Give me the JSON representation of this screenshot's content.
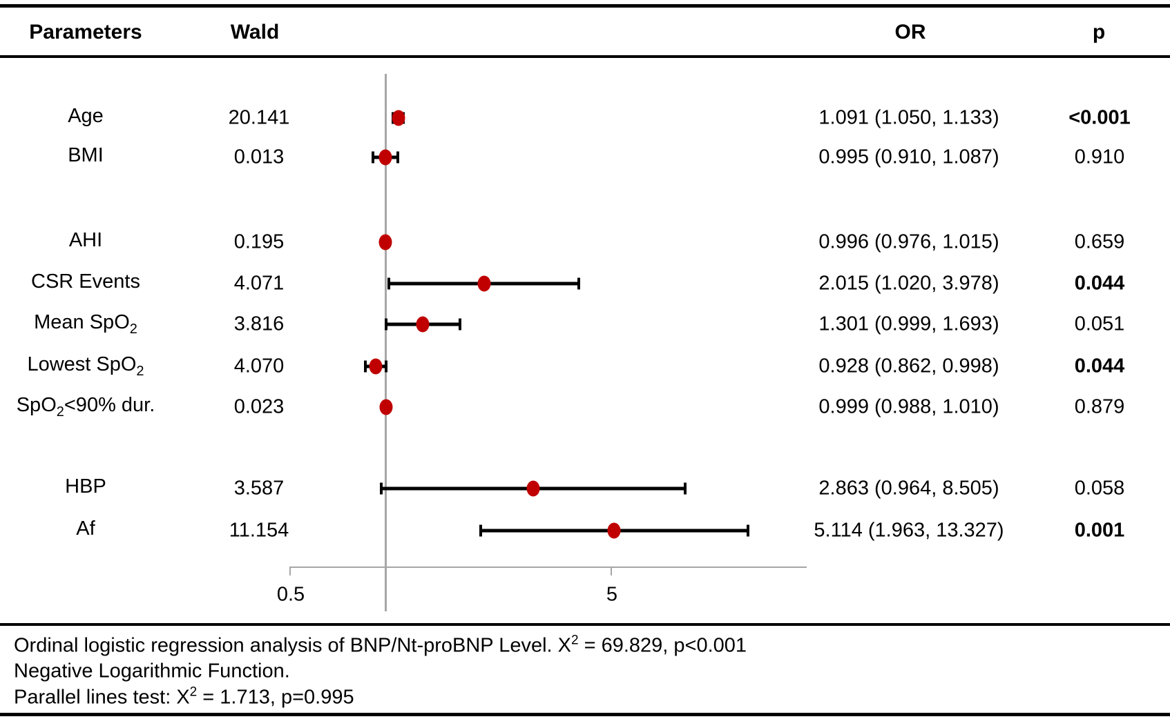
{
  "header": {
    "parameters": "Parameters",
    "wald": "Wald",
    "or": "OR",
    "p": "p"
  },
  "axis": {
    "tick_left": "0.5",
    "tick_right": "5"
  },
  "rows": [
    {
      "label_pre": "Age",
      "label_sub": "",
      "label_post": "",
      "wald": "20.141",
      "or_ci": "1.091 (1.050, 1.133)",
      "p": "<0.001",
      "p_bold": true
    },
    {
      "label_pre": "BMI",
      "label_sub": "",
      "label_post": "",
      "wald": "0.013",
      "or_ci": "0.995 (0.910, 1.087)",
      "p": "0.910",
      "p_bold": false
    },
    {
      "label_pre": "AHI",
      "label_sub": "",
      "label_post": "",
      "wald": "0.195",
      "or_ci": "0.996 (0.976, 1.015)",
      "p": "0.659",
      "p_bold": false
    },
    {
      "label_pre": "CSR Events",
      "label_sub": "",
      "label_post": "",
      "wald": "4.071",
      "or_ci": "2.015 (1.020, 3.978)",
      "p": "0.044",
      "p_bold": true
    },
    {
      "label_pre": "Mean SpO",
      "label_sub": "2",
      "label_post": "",
      "wald": "3.816",
      "or_ci": "1.301 (0.999, 1.693)",
      "p": "0.051",
      "p_bold": false
    },
    {
      "label_pre": "Lowest SpO",
      "label_sub": "2",
      "label_post": "",
      "wald": "4.070",
      "or_ci": "0.928 (0.862, 0.998)",
      "p": "0.044",
      "p_bold": true
    },
    {
      "label_pre": "SpO",
      "label_sub": "2",
      "label_post": "<90% dur.",
      "wald": "0.023",
      "or_ci": "0.999 (0.988, 1.010)",
      "p": "0.879",
      "p_bold": false
    },
    {
      "label_pre": "HBP",
      "label_sub": "",
      "label_post": "",
      "wald": "3.587",
      "or_ci": "2.863 (0.964, 8.505)",
      "p": "0.058",
      "p_bold": false
    },
    {
      "label_pre": "Af",
      "label_sub": "",
      "label_post": "",
      "wald": "11.154",
      "or_ci": "5.114 (1.963, 13.327)",
      "p": "0.001",
      "p_bold": true
    }
  ],
  "footnotes": [
    {
      "pre": "Ordinal logistic regression analysis of BNP/Nt-proBNP Level. X",
      "sup": "2",
      "post": " = 69.829, p<0.001"
    },
    {
      "pre": "Negative Logarithmic Function.",
      "sup": "",
      "post": ""
    },
    {
      "pre": "Parallel lines test: X",
      "sup": "2",
      "post": " = 1.713, p=0.995"
    }
  ],
  "chart_data": {
    "type": "scatter",
    "subtype": "forest-plot",
    "title": "",
    "xlabel": "",
    "ylabel": "",
    "x_scale": "log",
    "x_ticks": [
      "0.5",
      "5"
    ],
    "x_tick_values": [
      0.5,
      5
    ],
    "x_range": [
      0.5,
      20.3
    ],
    "reference_line_x": 1.0,
    "grid": false,
    "legend": false,
    "marker_color": "#c00000",
    "ci_color": "#000000",
    "axis_color": "#a6a6a6",
    "points": [
      {
        "label": "Age",
        "or": 1.091,
        "ci_low": 1.05,
        "ci_high": 1.133
      },
      {
        "label": "BMI",
        "or": 0.995,
        "ci_low": 0.91,
        "ci_high": 1.087
      },
      {
        "label": "AHI",
        "or": 0.996,
        "ci_low": 0.976,
        "ci_high": 1.015
      },
      {
        "label": "CSR Events",
        "or": 2.015,
        "ci_low": 1.02,
        "ci_high": 3.978
      },
      {
        "label": "Mean SpO2",
        "or": 1.301,
        "ci_low": 0.999,
        "ci_high": 1.693
      },
      {
        "label": "Lowest SpO2",
        "or": 0.928,
        "ci_low": 0.862,
        "ci_high": 0.998
      },
      {
        "label": "SpO2<90% dur.",
        "or": 0.999,
        "ci_low": 0.988,
        "ci_high": 1.01
      },
      {
        "label": "HBP",
        "or": 2.863,
        "ci_low": 0.964,
        "ci_high": 8.505
      },
      {
        "label": "Af",
        "or": 5.114,
        "ci_low": 1.963,
        "ci_high": 13.327
      }
    ]
  }
}
